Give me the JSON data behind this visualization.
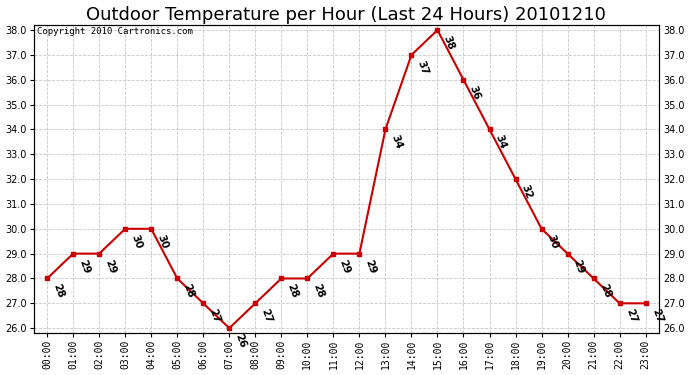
{
  "title": "Outdoor Temperature per Hour (Last 24 Hours) 20101210",
  "copyright_text": "Copyright 2010 Cartronics.com",
  "hours": [
    "00:00",
    "01:00",
    "02:00",
    "03:00",
    "04:00",
    "05:00",
    "06:00",
    "07:00",
    "08:00",
    "09:00",
    "10:00",
    "11:00",
    "12:00",
    "13:00",
    "14:00",
    "15:00",
    "16:00",
    "17:00",
    "18:00",
    "19:00",
    "20:00",
    "21:00",
    "22:00",
    "23:00"
  ],
  "temperatures": [
    28,
    29,
    29,
    30,
    30,
    28,
    27,
    26,
    27,
    28,
    28,
    29,
    29,
    34,
    37,
    38,
    36,
    34,
    32,
    30,
    29,
    28,
    27,
    27
  ],
  "ylim_min": 26.0,
  "ylim_max": 38.0,
  "line_color": "#cc0000",
  "marker_color": "#cc0000",
  "grid_color": "#c8c8c8",
  "background_color": "#ffffff",
  "title_fontsize": 13,
  "label_fontsize": 7,
  "annotation_fontsize": 7.5,
  "y_ticks": [
    26.0,
    27.0,
    28.0,
    29.0,
    30.0,
    31.0,
    32.0,
    33.0,
    34.0,
    35.0,
    36.0,
    37.0,
    38.0
  ]
}
